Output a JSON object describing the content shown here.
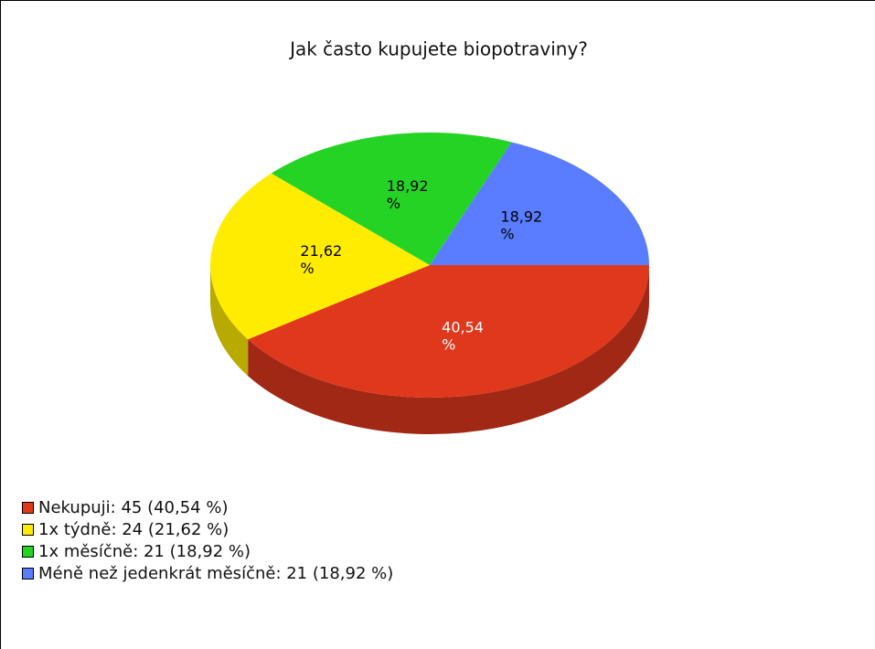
{
  "chart_data": {
    "type": "pie3d",
    "title": "Jak často kupujete biopotraviny?",
    "values": [
      40.54,
      21.62,
      18.92,
      18.92
    ],
    "value_labels": [
      "40,54 %",
      "21,62 %",
      "18,92 %",
      "18,92 %"
    ],
    "colors": [
      "#e0381c",
      "#ffec00",
      "#25d325",
      "#5a7cff"
    ],
    "legend": [
      "Nekupuji: 45 (40,54 %)",
      "1x týdně: 24 (21,62 %)",
      "1x měsíčně: 21 (18,92 %)",
      "Méně než jedenkrát měsíčně: 21 (18,92 %)"
    ]
  }
}
